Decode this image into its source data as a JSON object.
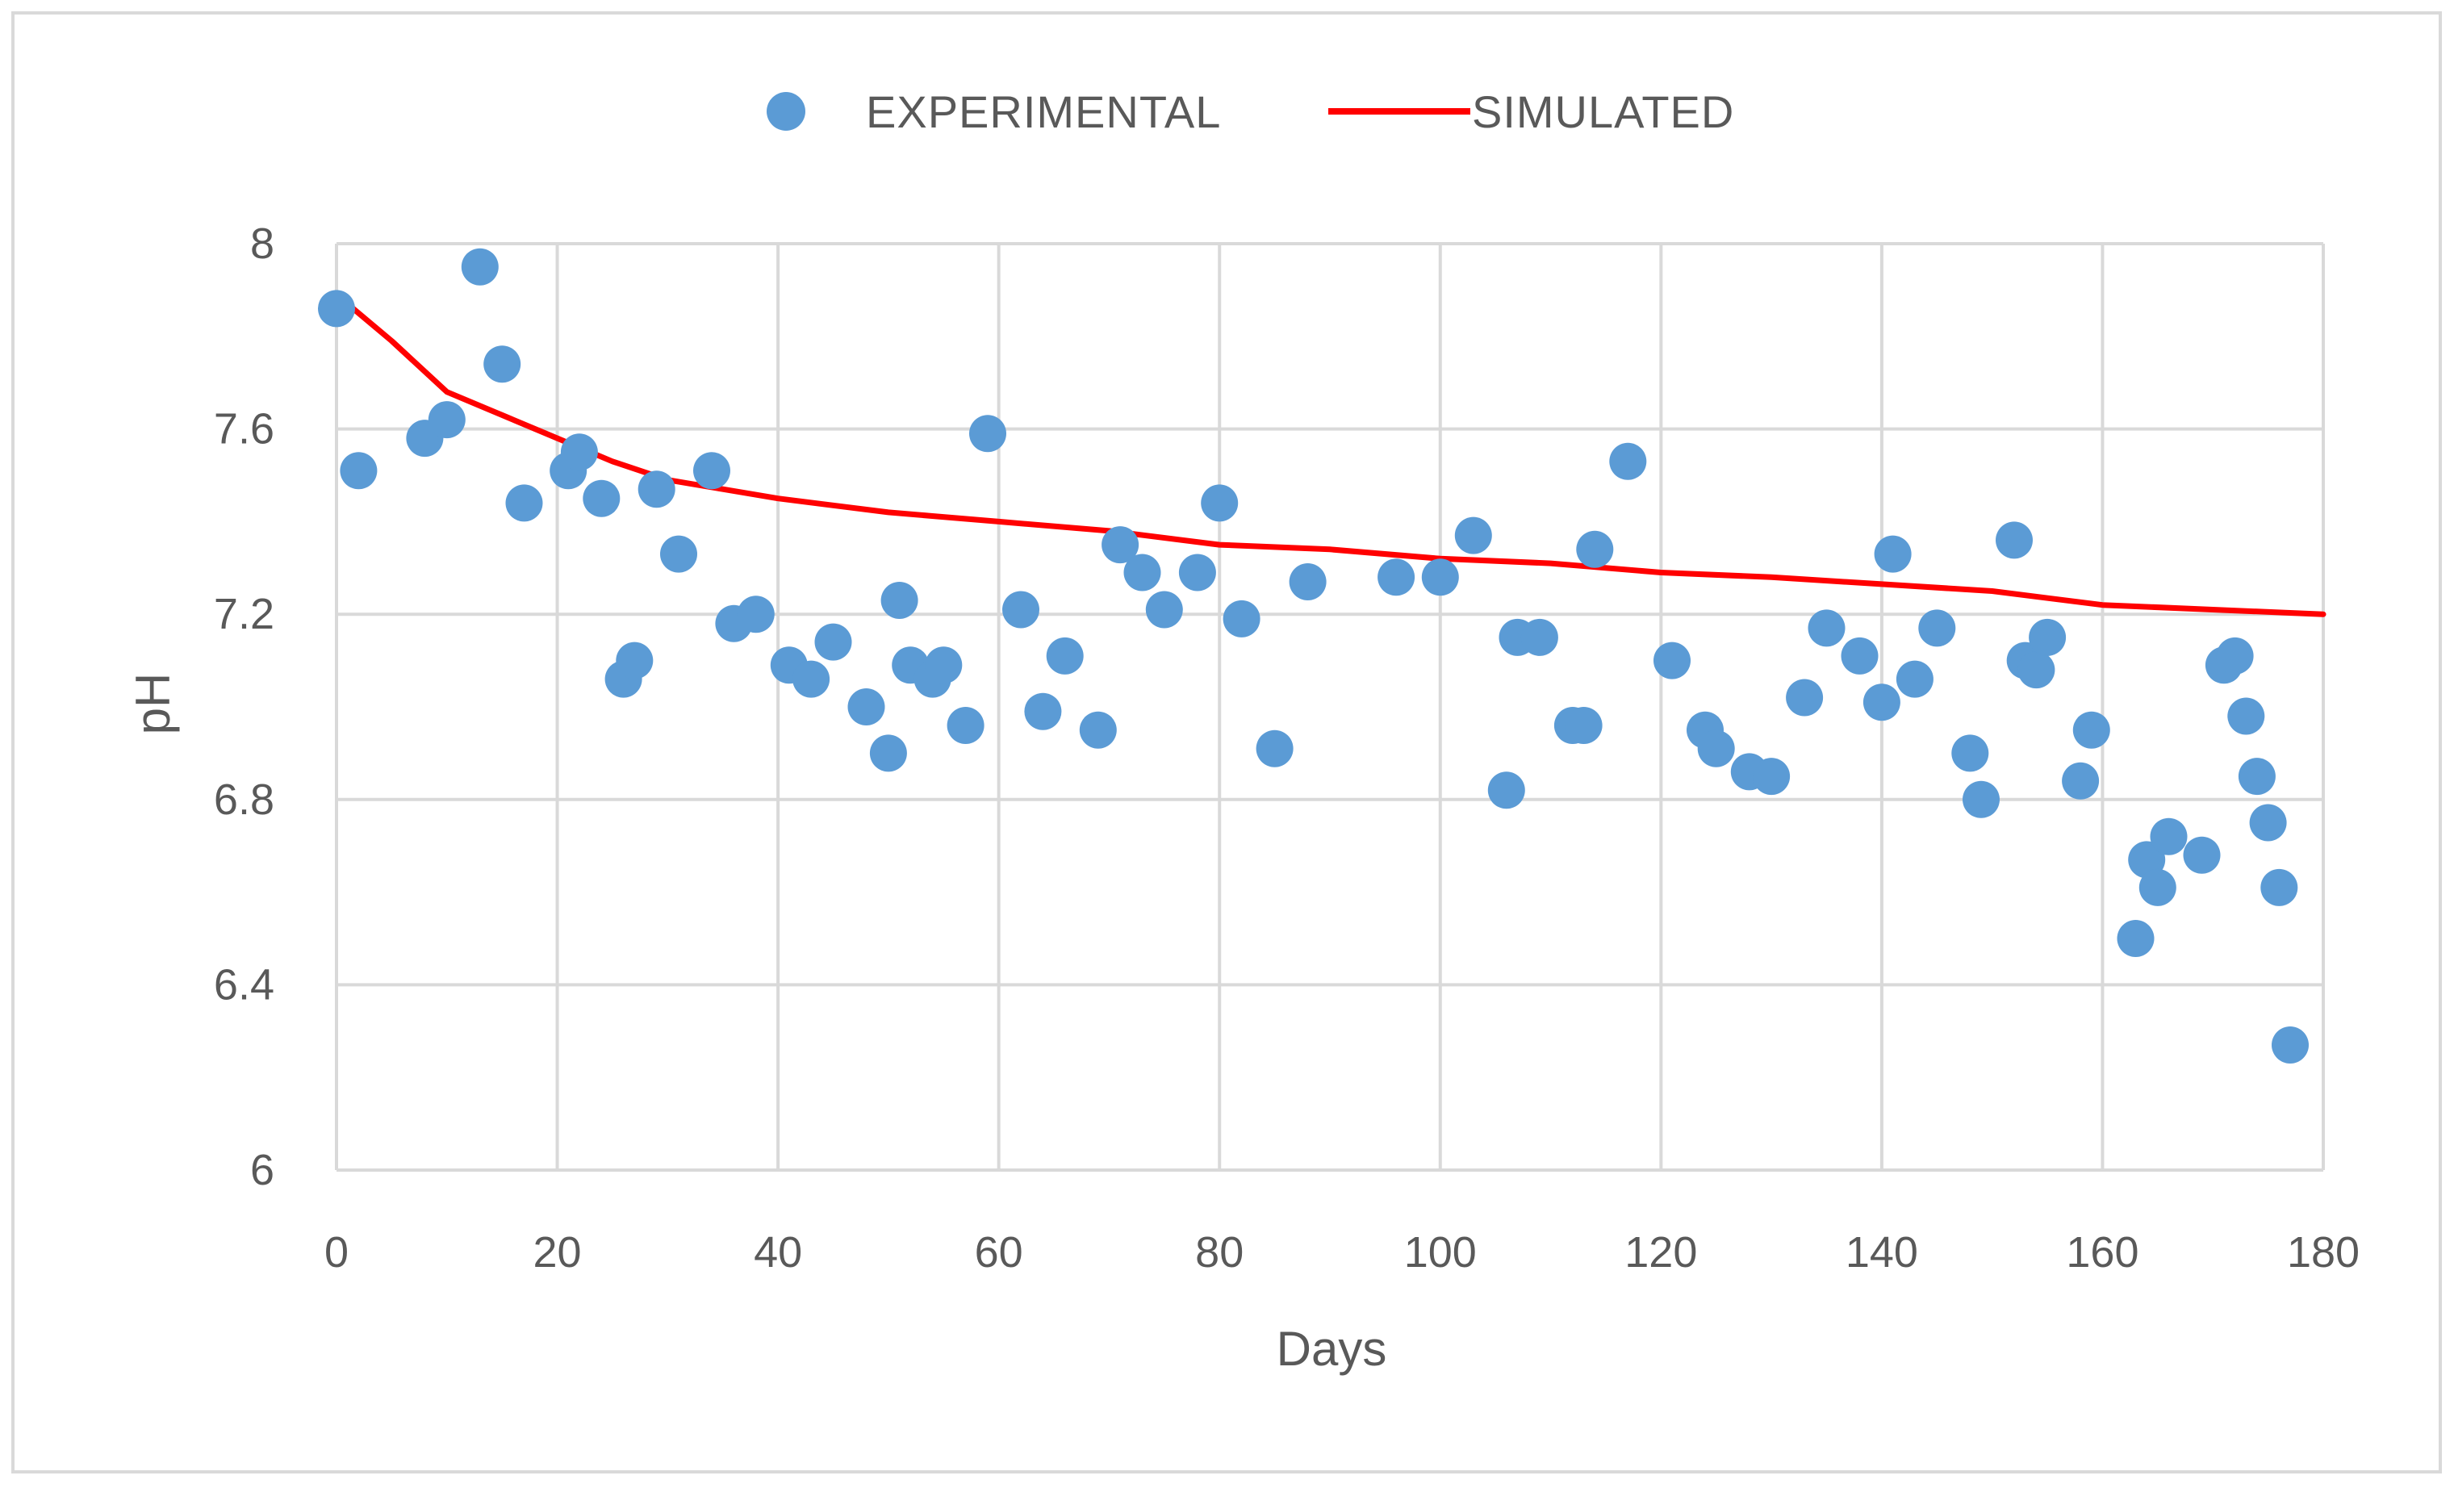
{
  "chart_data": {
    "type": "scatter",
    "title": "",
    "xlabel": "Days",
    "ylabel": "pH",
    "xlim": [
      0,
      180
    ],
    "ylim": [
      6,
      8
    ],
    "x_ticks": [
      "0",
      "20",
      "40",
      "60",
      "80",
      "100",
      "120",
      "140",
      "160",
      "180"
    ],
    "y_ticks": [
      "6",
      "6.4",
      "6.8",
      "7.2",
      "7.6",
      "8"
    ],
    "grid": true,
    "legend_position": "top-center",
    "colors": {
      "experimental": "#5b9bd5",
      "simulated": "#ff0000",
      "grid": "#d9d9d9",
      "text": "#595959"
    },
    "series": [
      {
        "name": "EXPERIMENTAL",
        "kind": "scatter",
        "points": [
          [
            0,
            7.86
          ],
          [
            2,
            7.51
          ],
          [
            8,
            7.58
          ],
          [
            10,
            7.62
          ],
          [
            13,
            7.95
          ],
          [
            15,
            7.74
          ],
          [
            17,
            7.44
          ],
          [
            21,
            7.51
          ],
          [
            22,
            7.55
          ],
          [
            24,
            7.45
          ],
          [
            26,
            7.06
          ],
          [
            27,
            7.1
          ],
          [
            29,
            7.47
          ],
          [
            31,
            7.33
          ],
          [
            34,
            7.51
          ],
          [
            36,
            7.18
          ],
          [
            38,
            7.2
          ],
          [
            41,
            7.09
          ],
          [
            43,
            7.06
          ],
          [
            45,
            7.14
          ],
          [
            48,
            7.0
          ],
          [
            50,
            6.9
          ],
          [
            51,
            7.23
          ],
          [
            52,
            7.09
          ],
          [
            54,
            7.06
          ],
          [
            55,
            7.09
          ],
          [
            57,
            6.96
          ],
          [
            59,
            7.59
          ],
          [
            62,
            7.21
          ],
          [
            64,
            6.99
          ],
          [
            66,
            7.11
          ],
          [
            69,
            6.95
          ],
          [
            71,
            7.35
          ],
          [
            73,
            7.29
          ],
          [
            75,
            7.21
          ],
          [
            78,
            7.29
          ],
          [
            80,
            7.44
          ],
          [
            82,
            7.19
          ],
          [
            85,
            6.91
          ],
          [
            88,
            7.27
          ],
          [
            96,
            7.28
          ],
          [
            100,
            7.28
          ],
          [
            103,
            7.37
          ],
          [
            106,
            6.82
          ],
          [
            107,
            7.15
          ],
          [
            109,
            7.15
          ],
          [
            112,
            6.96
          ],
          [
            113,
            6.96
          ],
          [
            114,
            7.34
          ],
          [
            117,
            7.53
          ],
          [
            121,
            7.1
          ],
          [
            124,
            6.95
          ],
          [
            125,
            6.91
          ],
          [
            128,
            6.86
          ],
          [
            130,
            6.85
          ],
          [
            133,
            7.02
          ],
          [
            135,
            7.17
          ],
          [
            138,
            7.11
          ],
          [
            140,
            7.01
          ],
          [
            141,
            7.33
          ],
          [
            143,
            7.06
          ],
          [
            145,
            7.17
          ],
          [
            148,
            6.9
          ],
          [
            149,
            6.8
          ],
          [
            152,
            7.36
          ],
          [
            153,
            7.1
          ],
          [
            154,
            7.08
          ],
          [
            155,
            7.15
          ],
          [
            158,
            6.84
          ],
          [
            159,
            6.95
          ],
          [
            163,
            6.5
          ],
          [
            164,
            6.67
          ],
          [
            165,
            6.61
          ],
          [
            166,
            6.72
          ],
          [
            169,
            6.68
          ],
          [
            171,
            7.09
          ],
          [
            172,
            7.11
          ],
          [
            173,
            6.98
          ],
          [
            174,
            6.85
          ],
          [
            175,
            6.75
          ],
          [
            176,
            6.61
          ],
          [
            177,
            6.27
          ]
        ]
      },
      {
        "name": "SIMULATED",
        "kind": "line",
        "points": [
          [
            0,
            7.89
          ],
          [
            5,
            7.79
          ],
          [
            10,
            7.68
          ],
          [
            15,
            7.63
          ],
          [
            20,
            7.58
          ],
          [
            25,
            7.53
          ],
          [
            30,
            7.49
          ],
          [
            35,
            7.47
          ],
          [
            40,
            7.45
          ],
          [
            50,
            7.42
          ],
          [
            60,
            7.4
          ],
          [
            70,
            7.38
          ],
          [
            80,
            7.35
          ],
          [
            90,
            7.34
          ],
          [
            100,
            7.32
          ],
          [
            110,
            7.31
          ],
          [
            120,
            7.29
          ],
          [
            130,
            7.28
          ],
          [
            140,
            7.265
          ],
          [
            150,
            7.25
          ],
          [
            160,
            7.22
          ],
          [
            170,
            7.21
          ],
          [
            180,
            7.2
          ]
        ]
      }
    ]
  }
}
